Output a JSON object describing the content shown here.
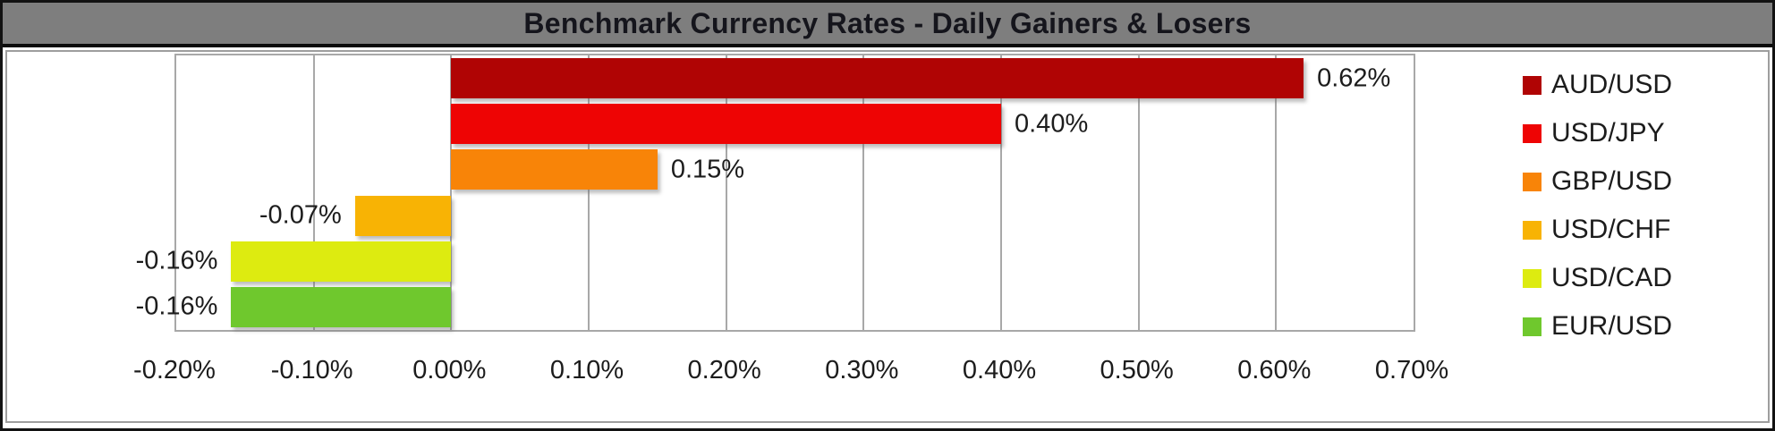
{
  "title": "Benchmark Currency Rates - Daily Gainers & Losers",
  "colors": {
    "title_bg": "#7e7e7e",
    "title_text": "#15151c",
    "frame_border": "#121212",
    "grid": "#a8a8a8",
    "plot_bg": "#ffffff"
  },
  "chart_data": {
    "type": "bar",
    "orientation": "horizontal",
    "title": "Benchmark Currency Rates - Daily Gainers & Losers",
    "unit": "percent",
    "series": [
      {
        "name": "AUD/USD",
        "value": 0.62,
        "label": "0.62%",
        "color": "#b00404"
      },
      {
        "name": "USD/JPY",
        "value": 0.4,
        "label": "0.40%",
        "color": "#ee0404"
      },
      {
        "name": "GBP/USD",
        "value": 0.15,
        "label": "0.15%",
        "color": "#f88408"
      },
      {
        "name": "USD/CHF",
        "value": -0.07,
        "label": "-0.07%",
        "color": "#f8b304"
      },
      {
        "name": "USD/CAD",
        "value": -0.16,
        "label": "-0.16%",
        "color": "#ddeb10"
      },
      {
        "name": "EUR/USD",
        "value": -0.16,
        "label": "-0.16%",
        "color": "#6fc82d"
      }
    ],
    "xlim": [
      -0.2,
      0.7
    ],
    "x_tick_values": [
      -0.2,
      -0.1,
      0.0,
      0.1,
      0.2,
      0.3,
      0.4,
      0.5,
      0.6,
      0.7
    ],
    "x_ticks": [
      "-0.20%",
      "-0.10%",
      "0.00%",
      "0.10%",
      "0.20%",
      "0.30%",
      "0.40%",
      "0.50%",
      "0.60%",
      "0.70%"
    ],
    "grid": true,
    "legend_position": "right",
    "value_labels": "outside-end"
  }
}
